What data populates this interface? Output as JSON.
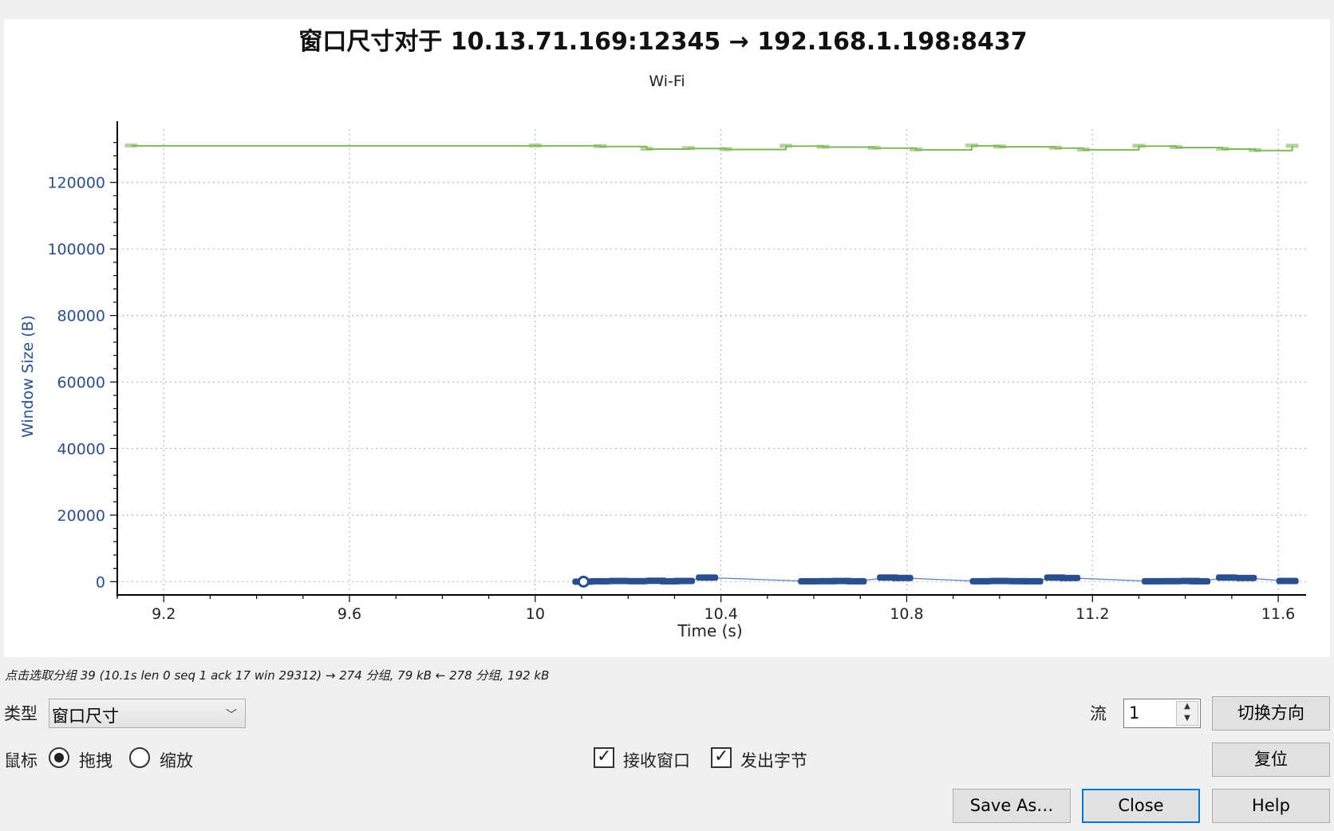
{
  "chart_data": {
    "type": "scatter",
    "title": "窗口尺寸对于 10.13.71.169:12345 → 192.168.1.198:8437",
    "subtitle": "Wi-Fi",
    "xlabel": "Time (s)",
    "ylabel": "Window Size (B)",
    "xlim": [
      9.1,
      11.66
    ],
    "ylim": [
      -4000,
      136000
    ],
    "xticks": [
      "9.2",
      "9.6",
      "10",
      "10.4",
      "10.8",
      "11.2",
      "11.6"
    ],
    "xtick_values": [
      9.2,
      9.6,
      10.0,
      10.4,
      10.8,
      11.2,
      11.6
    ],
    "yticks": [
      "0",
      "20000",
      "40000",
      "60000",
      "80000",
      "100000",
      "120000"
    ],
    "ytick_values": [
      0,
      20000,
      40000,
      60000,
      80000,
      100000,
      120000
    ],
    "grid": true,
    "series": [
      {
        "color": "#82b85a",
        "style": "step",
        "x": [
          9.13,
          10.0,
          10.14,
          10.24,
          10.33,
          10.41,
          10.54,
          10.62,
          10.73,
          10.82,
          10.94,
          11.0,
          11.12,
          11.18,
          11.3,
          11.38,
          11.48,
          11.55,
          11.63
        ],
        "values": [
          131000,
          131000,
          130800,
          130000,
          130200,
          129900,
          130900,
          130600,
          130300,
          129800,
          131000,
          130700,
          130300,
          129800,
          130900,
          130500,
          130000,
          129600,
          130900
        ]
      },
      {
        "color": "#2a4f8f",
        "style": "points",
        "x": [
          10.104,
          10.14,
          10.18,
          10.22,
          10.26,
          10.29,
          10.32,
          10.37,
          10.59,
          10.63,
          10.66,
          10.69,
          10.76,
          10.79,
          10.96,
          11.0,
          11.04,
          11.07,
          11.12,
          11.15,
          11.33,
          11.37,
          11.41,
          11.43,
          11.49,
          11.53,
          11.62
        ],
        "values": [
          0,
          100,
          200,
          150,
          250,
          100,
          200,
          1200,
          100,
          150,
          200,
          100,
          1200,
          1100,
          100,
          200,
          150,
          100,
          1200,
          1100,
          100,
          150,
          200,
          100,
          1200,
          1100,
          200
        ]
      }
    ]
  },
  "status": {
    "hint": "点击选取分组 39 (10.1s len 0 seq 1 ack 17 win 29312) → 274 分组, 79 kB ← 278 分组, 192 kB"
  },
  "controls": {
    "type_label": "类型",
    "type_value": "窗口尺寸",
    "stream_label": "流",
    "stream_value": "1",
    "switch_direction": "切换方向",
    "mouse_label": "鼠标",
    "drag_label": "拖拽",
    "zoom_label": "缩放",
    "mouse_mode": "drag",
    "rcv_window_label": "接收窗口",
    "rcv_window_checked": true,
    "bytes_out_label": "发出字节",
    "bytes_out_checked": true,
    "reset": "复位",
    "save_as": "Save As…",
    "close": "Close",
    "help": "Help"
  }
}
